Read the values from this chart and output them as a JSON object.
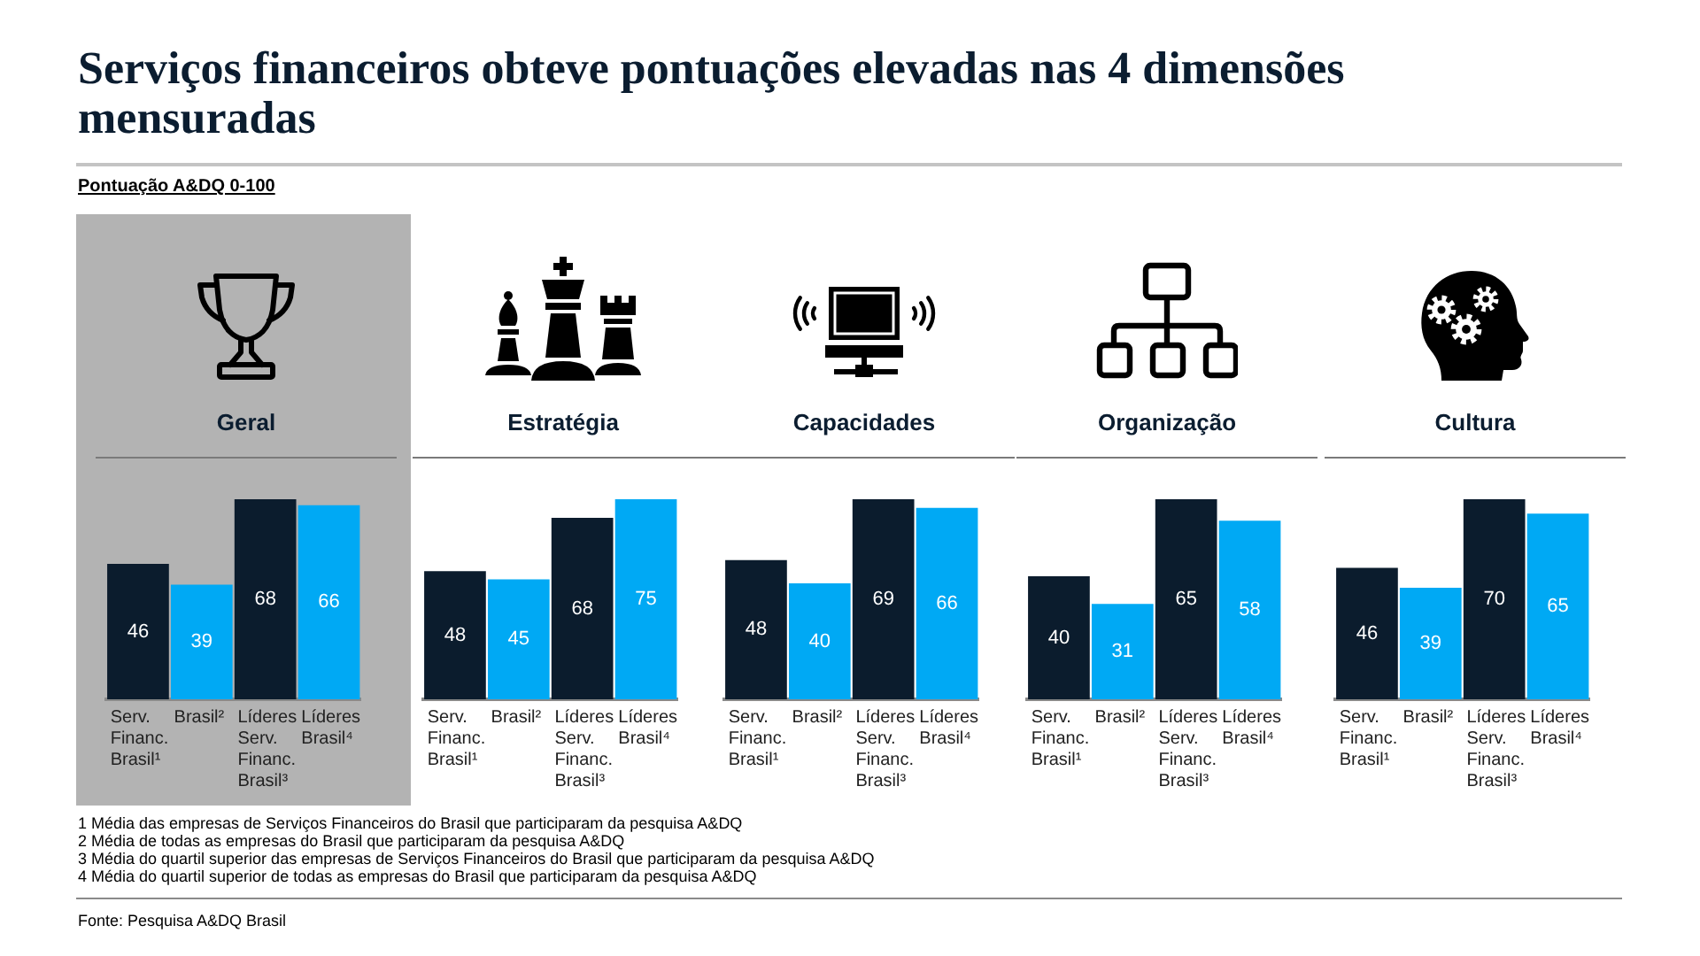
{
  "chart_data": [
    {
      "type": "other",
      "title": "Serviços financeiros obteve pontuações elevadas nas 4 dimensões mensuradas",
      "subtitle": "Pontuação A&DQ 0-100",
      "annotations": [
        "1 Média das empresas de Serviços Financeiros do Brasil que participaram da pesquisa A&DQ",
        "2 Média de todas as empresas do Brasil que participaram da pesquisa A&DQ",
        "3 Média do quartil superior das empresas de Serviços Financeiros do Brasil que participaram da pesquisa A&DQ",
        "4 Média do quartil superior de todas as empresas do Brasil que participaram da pesquisa A&DQ",
        "Fonte: Pesquisa A&DQ Brasil"
      ]
    },
    {
      "type": "bar",
      "title": "Geral",
      "categories": [
        "Serv. Financ. Brasil¹",
        "Brasil²",
        "Líderes Serv. Financ. Brasil³",
        "Líderes Brasil⁴"
      ],
      "values": [
        46,
        39,
        68,
        66
      ],
      "colors": [
        "#0b1c2d",
        "#00a9f4",
        "#0b1c2d",
        "#00a9f4"
      ],
      "data_labels": true,
      "tick_labels": "x"
    },
    {
      "type": "bar",
      "title": "Estratégia",
      "categories": [
        "Serv. Financ. Brasil¹",
        "Brasil²",
        "Líderes Serv. Financ. Brasil³",
        "Líderes Brasil⁴"
      ],
      "values": [
        48,
        45,
        68,
        75
      ],
      "colors": [
        "#0b1c2d",
        "#00a9f4",
        "#0b1c2d",
        "#00a9f4"
      ],
      "data_labels": true,
      "tick_labels": "x"
    },
    {
      "type": "bar",
      "title": "Capacidades",
      "categories": [
        "Serv. Financ. Brasil¹",
        "Brasil²",
        "Líderes Serv. Financ. Brasil³",
        "Líderes Brasil⁴"
      ],
      "values": [
        48,
        40,
        69,
        66
      ],
      "colors": [
        "#0b1c2d",
        "#00a9f4",
        "#0b1c2d",
        "#00a9f4"
      ],
      "data_labels": true,
      "tick_labels": "x"
    },
    {
      "type": "bar",
      "title": "Organização",
      "categories": [
        "Serv. Financ. Brasil¹",
        "Brasil²",
        "Líderes Serv. Financ. Brasil³",
        "Líderes Brasil⁴"
      ],
      "values": [
        40,
        31,
        65,
        58
      ],
      "colors": [
        "#0b1c2d",
        "#00a9f4",
        "#0b1c2d",
        "#00a9f4"
      ],
      "data_labels": true,
      "tick_labels": "x"
    },
    {
      "type": "bar",
      "title": "Cultura",
      "categories": [
        "Serv. Financ. Brasil¹",
        "Brasil²",
        "Líderes Serv. Financ. Brasil³",
        "Líderes Brasil⁴"
      ],
      "values": [
        46,
        39,
        70,
        65
      ],
      "colors": [
        "#0b1c2d",
        "#00a9f4",
        "#0b1c2d",
        "#00a9f4"
      ],
      "data_labels": true,
      "tick_labels": "x"
    }
  ]
}
